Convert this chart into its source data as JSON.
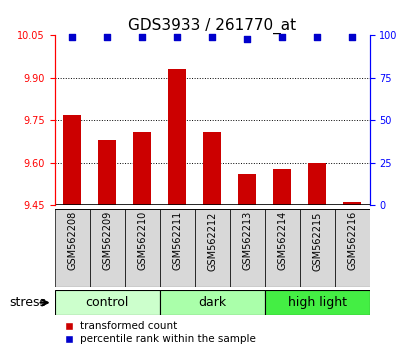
{
  "title": "GDS3933 / 261770_at",
  "samples": [
    "GSM562208",
    "GSM562209",
    "GSM562210",
    "GSM562211",
    "GSM562212",
    "GSM562213",
    "GSM562214",
    "GSM562215",
    "GSM562216"
  ],
  "transformed_counts": [
    9.77,
    9.68,
    9.71,
    9.93,
    9.71,
    9.56,
    9.58,
    9.6,
    9.46
  ],
  "percentile_ranks": [
    99,
    99,
    99,
    99,
    99,
    98,
    99,
    99,
    99
  ],
  "ylim_left": [
    9.45,
    10.05
  ],
  "ylim_right": [
    0,
    100
  ],
  "yticks_left": [
    9.45,
    9.6,
    9.75,
    9.9,
    10.05
  ],
  "yticks_right": [
    0,
    25,
    50,
    75,
    100
  ],
  "groups": [
    {
      "label": "control",
      "start": 0,
      "end": 3,
      "color": "#ccffcc"
    },
    {
      "label": "dark",
      "start": 3,
      "end": 6,
      "color": "#aaffaa"
    },
    {
      "label": "high light",
      "start": 6,
      "end": 9,
      "color": "#44ee44"
    }
  ],
  "bar_color": "#cc0000",
  "dot_color": "#0000cc",
  "bar_bottom": 9.45,
  "stress_label": "stress",
  "legend_bar_label": "transformed count",
  "legend_dot_label": "percentile rank within the sample",
  "title_fontsize": 11,
  "tick_label_fontsize": 7,
  "group_label_fontsize": 9,
  "background_color": "#ffffff"
}
